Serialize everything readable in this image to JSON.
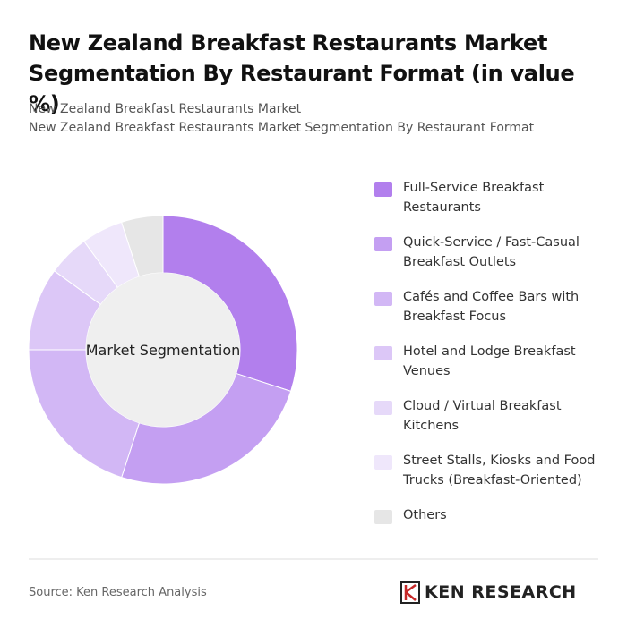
{
  "chart_data": {
    "type": "pie",
    "title": "New Zealand Breakfast Restaurants Market Segmentation By Restaurant Format (in value %)",
    "subtitle": [
      "New Zealand Breakfast Restaurants Market",
      "New Zealand Breakfast Restaurants Market Segmentation By Restaurant Format"
    ],
    "center_label": "Market Segmentation",
    "categories": [
      "Full-Service Breakfast Restaurants",
      "Quick-Service / Fast-Casual Breakfast Outlets",
      "Cafés and Coffee Bars with Breakfast Focus",
      "Hotel and Lodge Breakfast Venues",
      "Cloud / Virtual Breakfast Kitchens",
      "Street Stalls, Kiosks and Food Trucks (Breakfast-Oriented)",
      "Others"
    ],
    "values": [
      30,
      25,
      20,
      10,
      5,
      5,
      5
    ],
    "colors": [
      "#b27fed",
      "#c49ff2",
      "#d2b7f5",
      "#dcc7f7",
      "#e6d9f9",
      "#efe7fb",
      "#e6e6e6"
    ],
    "legend": "right",
    "source": "Source: Ken Research Analysis",
    "brand": "KEN RESEARCH"
  }
}
